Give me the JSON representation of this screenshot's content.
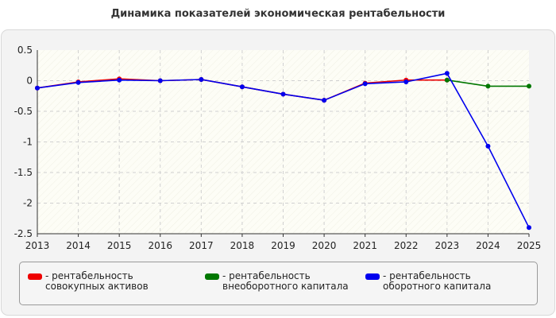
{
  "chart_data": {
    "type": "line",
    "title": "Динамика показателей экономическая рентабельности",
    "x": [
      "2013",
      "2014",
      "2015",
      "2016",
      "2017",
      "2018",
      "2019",
      "2020",
      "2021",
      "2022",
      "2023",
      "2024",
      "2025"
    ],
    "y_ticks": [
      "0.5",
      "0",
      "-0.5",
      "-1",
      "-1.5",
      "-2",
      "-2.5"
    ],
    "ylim": [
      -2.5,
      0.5
    ],
    "grid": true,
    "legend_position": "bottom",
    "series": [
      {
        "name": "- рентабельность совокупных активов",
        "color": "#ee0000",
        "values": [
          -0.12,
          -0.02,
          0.03,
          0.0,
          0.02,
          -0.1,
          -0.22,
          -0.32,
          -0.04,
          0.01,
          0.01,
          null,
          null
        ]
      },
      {
        "name": "- рентабельность внеоборотного капитала",
        "color": "#007700",
        "values": [
          null,
          null,
          null,
          null,
          null,
          null,
          null,
          null,
          null,
          null,
          0.01,
          -0.09,
          -0.09
        ]
      },
      {
        "name": "- рентабельность оборотного капитала",
        "color": "#0000ee",
        "values": [
          -0.12,
          -0.03,
          0.01,
          0.0,
          0.02,
          -0.1,
          -0.22,
          -0.32,
          -0.05,
          -0.02,
          0.12,
          -1.07,
          -2.4
        ]
      }
    ]
  }
}
